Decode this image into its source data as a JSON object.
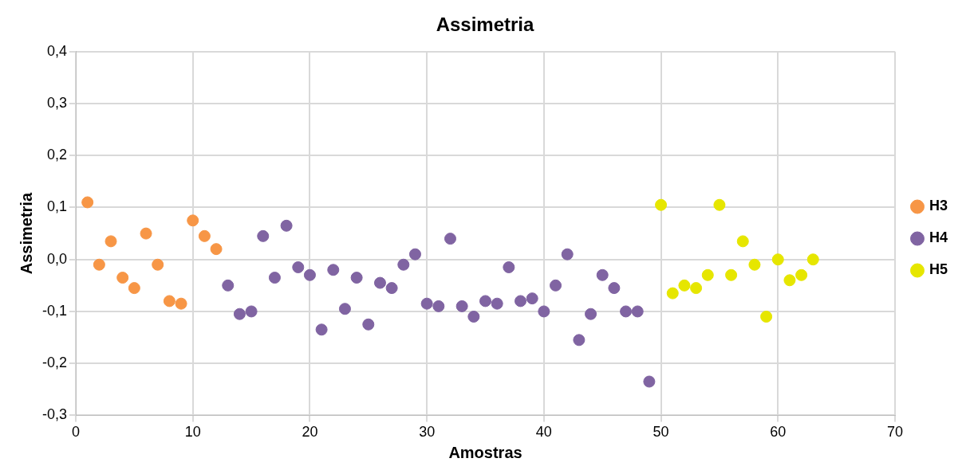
{
  "chart_data": {
    "type": "scatter",
    "title": "Assimetria",
    "xlabel": "Amostras",
    "ylabel": "Assimetria",
    "series": [
      {
        "name": "H3",
        "color": "#f79646",
        "x": [
          1,
          2,
          3,
          4,
          5,
          6,
          7,
          8,
          9,
          10,
          11,
          12
        ],
        "values": [
          0.11,
          -0.01,
          0.035,
          -0.035,
          -0.055,
          0.05,
          -0.01,
          -0.08,
          -0.085,
          0.075,
          0.045,
          0.02
        ]
      },
      {
        "name": "H4",
        "color": "#8064a2",
        "x": [
          13,
          14,
          15,
          16,
          17,
          18,
          19,
          20,
          21,
          22,
          23,
          24,
          25,
          26,
          27,
          28,
          29,
          30,
          31,
          32,
          33,
          34,
          35,
          36,
          37,
          38,
          39,
          40,
          41,
          42,
          43,
          44,
          45,
          46,
          47,
          48,
          49
        ],
        "values": [
          -0.05,
          -0.105,
          -0.1,
          0.045,
          -0.035,
          0.065,
          -0.015,
          -0.03,
          -0.135,
          -0.02,
          -0.095,
          -0.035,
          -0.125,
          -0.045,
          -0.055,
          -0.01,
          0.01,
          -0.085,
          -0.09,
          0.04,
          -0.09,
          -0.11,
          -0.08,
          -0.085,
          -0.015,
          -0.08,
          -0.075,
          -0.1,
          -0.05,
          0.01,
          -0.155,
          -0.105,
          -0.03,
          -0.055,
          -0.1,
          -0.1,
          -0.235
        ]
      },
      {
        "name": "H5",
        "color": "#e6e600",
        "x": [
          50,
          51,
          52,
          53,
          54,
          55,
          56,
          57,
          58,
          59,
          60,
          61,
          62,
          63
        ],
        "values": [
          0.105,
          -0.065,
          -0.05,
          -0.055,
          -0.03,
          0.105,
          -0.03,
          0.035,
          -0.01,
          -0.11,
          0,
          -0.04,
          -0.03,
          0
        ]
      }
    ],
    "xlim": [
      0,
      70
    ],
    "xticks": [
      0,
      10,
      20,
      30,
      40,
      50,
      60,
      70
    ],
    "ylim": [
      -0.3,
      0.4
    ],
    "yticks": [
      {
        "value": -0.3,
        "label": "-0,3"
      },
      {
        "value": -0.2,
        "label": "-0,2"
      },
      {
        "value": -0.1,
        "label": "-0,1"
      },
      {
        "value": 0,
        "label": "0,0"
      },
      {
        "value": 0.1,
        "label": "0,1"
      },
      {
        "value": 0.2,
        "label": "0,2"
      },
      {
        "value": 0.3,
        "label": "0,3"
      },
      {
        "value": 0.4,
        "label": "0,4"
      }
    ],
    "grid": true,
    "legend": "right",
    "marker": "circle"
  }
}
